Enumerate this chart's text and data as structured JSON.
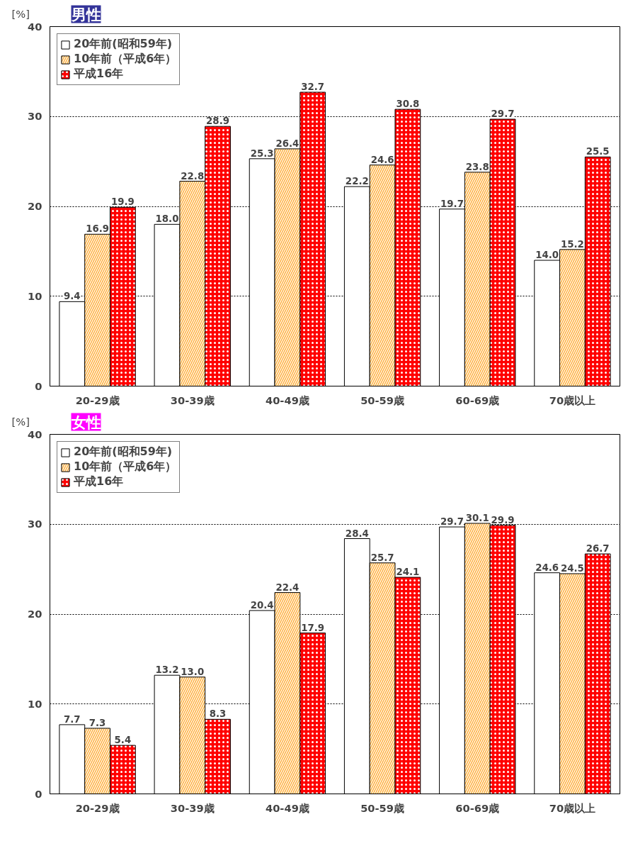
{
  "chart_data": [
    {
      "type": "bar",
      "title": "男性",
      "ylabel": "[%]",
      "categories": [
        "20-29歳",
        "30-39歳",
        "40-49歳",
        "50-59歳",
        "60-69歳",
        "70歳以上"
      ],
      "series": [
        {
          "name": "20年前(昭和59年)",
          "color": "#ffffff",
          "values": [
            9.4,
            18.0,
            25.3,
            22.2,
            19.7,
            14.0
          ],
          "value_labels": [
            "9.4",
            "18.0",
            "25.3",
            "22.2",
            "19.7",
            "14.0"
          ]
        },
        {
          "name": "10年前（平成6年）",
          "color": "#ffb040",
          "values": [
            16.9,
            22.8,
            26.4,
            24.6,
            23.8,
            15.2
          ],
          "value_labels": [
            "16.9",
            "22.8",
            "26.4",
            "24.6",
            "23.8",
            "15.2"
          ]
        },
        {
          "name": "平成16年",
          "color": "#ff0000",
          "values": [
            19.9,
            28.9,
            32.7,
            30.8,
            29.7,
            25.5
          ],
          "value_labels": [
            "19.9",
            "28.9",
            "32.7",
            "30.8",
            "29.7",
            "25.5"
          ]
        }
      ],
      "ylim": [
        0,
        40
      ],
      "yticks": [
        0,
        10,
        20,
        30,
        40
      ],
      "grid": "y",
      "legend": "top left"
    },
    {
      "type": "bar",
      "title": "女性",
      "ylabel": "[%]",
      "categories": [
        "20-29歳",
        "30-39歳",
        "40-49歳",
        "50-59歳",
        "60-69歳",
        "70歳以上"
      ],
      "series": [
        {
          "name": "20年前(昭和59年)",
          "color": "#ffffff",
          "values": [
            7.7,
            13.2,
            20.4,
            28.4,
            29.7,
            24.6
          ],
          "value_labels": [
            "7.7",
            "13.2",
            "20.4",
            "28.4",
            "29.7",
            "24.6"
          ]
        },
        {
          "name": "10年前（平成6年）",
          "color": "#ffb040",
          "values": [
            7.3,
            13.0,
            22.4,
            25.7,
            30.1,
            24.5
          ],
          "value_labels": [
            "7.3",
            "13.0",
            "22.4",
            "25.7",
            "30.1",
            "24.5"
          ]
        },
        {
          "name": "平成16年",
          "color": "#ff0000",
          "values": [
            5.4,
            8.3,
            17.9,
            24.1,
            29.9,
            26.7
          ],
          "value_labels": [
            "5.4",
            "8.3",
            "17.9",
            "24.1",
            "29.9",
            "26.7"
          ]
        }
      ],
      "ylim": [
        0,
        40
      ],
      "yticks": [
        0,
        10,
        20,
        30,
        40
      ],
      "grid": "y",
      "legend": "top left"
    }
  ]
}
